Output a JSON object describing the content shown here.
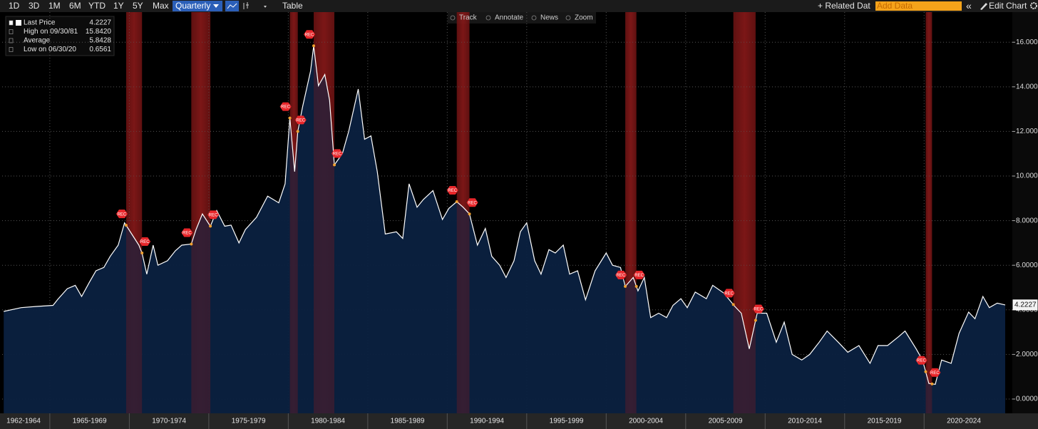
{
  "toolbar": {
    "periods": [
      "1D",
      "3D",
      "1M",
      "6M",
      "YTD",
      "1Y",
      "5Y",
      "Max"
    ],
    "frequency": "Quarterly",
    "table": "Table",
    "related": "+ Related Dat",
    "add_data": "Add Data",
    "collapse": "«",
    "edit": "Edit Chart"
  },
  "chart_tools": [
    "Track",
    "Annotate",
    "News",
    "Zoom"
  ],
  "legend": [
    {
      "label": "Last Price",
      "value": "4.2227"
    },
    {
      "label": "High on 09/30/81",
      "value": "15.8420"
    },
    {
      "label": "Average",
      "value": "5.8428"
    },
    {
      "label": "Low on 06/30/20",
      "value": "0.6561"
    }
  ],
  "chart_data": {
    "type": "area",
    "x": [
      1962.1,
      1963.2,
      1964.1,
      1965.2,
      1965.5,
      1966.1,
      1966.6,
      1967.0,
      1967.5,
      1967.9,
      1968.4,
      1968.8,
      1969.3,
      1969.7,
      1970.2,
      1970.6,
      1970.8,
      1971.1,
      1971.5,
      1971.8,
      1972.4,
      1972.9,
      1973.3,
      1973.9,
      1974.2,
      1974.6,
      1975.1,
      1975.5,
      1976.0,
      1976.4,
      1976.9,
      1977.3,
      1978.0,
      1978.7,
      1979.4,
      1979.8,
      1980.1,
      1980.4,
      1980.6,
      1980.9,
      1981.4,
      1981.6,
      1981.9,
      1982.3,
      1982.6,
      1982.9,
      1983.4,
      1983.8,
      1984.4,
      1984.8,
      1985.2,
      1985.6,
      1986.1,
      1986.8,
      1987.2,
      1987.6,
      1988.1,
      1988.5,
      1989.1,
      1989.7,
      1990.1,
      1990.6,
      1991.0,
      1991.4,
      1991.9,
      1992.4,
      1992.8,
      1993.3,
      1993.7,
      1994.2,
      1994.6,
      1995.0,
      1995.5,
      1995.9,
      1996.4,
      1996.8,
      1997.3,
      1997.7,
      1998.2,
      1998.7,
      1999.3,
      2000.0,
      2000.4,
      2000.9,
      2001.2,
      2001.7,
      2002.0,
      2002.4,
      2002.8,
      2003.3,
      2003.8,
      2004.2,
      2004.7,
      2005.1,
      2005.6,
      2006.3,
      2006.7,
      2007.4,
      2008.1,
      2008.5,
      2009.0,
      2009.5,
      2010.1,
      2010.7,
      2011.2,
      2011.7,
      2012.3,
      2012.8,
      2013.4,
      2013.9,
      2014.6,
      2015.2,
      2015.9,
      2016.6,
      2017.1,
      2017.7,
      2018.4,
      2018.8,
      2019.5,
      2019.9,
      2020.3,
      2020.7,
      2021.1,
      2021.7,
      2022.2,
      2022.8,
      2023.2,
      2023.7,
      2024.1,
      2024.6,
      2025.1
    ],
    "series": [
      {
        "color": "#ffffff",
        "fill": "#0b2140",
        "values": [
          3.93,
          4.1,
          4.15,
          4.2,
          4.47,
          4.95,
          5.1,
          4.6,
          5.25,
          5.75,
          5.9,
          6.4,
          6.9,
          7.9,
          7.35,
          6.9,
          6.55,
          5.6,
          6.9,
          6.0,
          6.2,
          6.65,
          6.9,
          6.95,
          7.6,
          8.3,
          7.75,
          8.45,
          7.75,
          7.8,
          7.0,
          7.6,
          8.15,
          9.1,
          8.8,
          9.65,
          12.6,
          10.2,
          12.0,
          13.1,
          14.7,
          15.84,
          14.05,
          14.55,
          13.4,
          10.5,
          11.0,
          12.0,
          13.9,
          11.65,
          11.8,
          10.2,
          7.4,
          7.5,
          7.2,
          9.65,
          8.6,
          8.95,
          9.35,
          8.05,
          8.55,
          8.85,
          8.6,
          8.3,
          6.9,
          7.65,
          6.4,
          6.0,
          5.45,
          6.2,
          7.5,
          7.9,
          6.2,
          5.6,
          6.7,
          6.55,
          6.9,
          5.6,
          5.75,
          4.45,
          5.75,
          6.55,
          6.0,
          5.9,
          5.05,
          5.45,
          4.85,
          5.45,
          3.65,
          3.85,
          3.65,
          4.2,
          4.5,
          4.1,
          4.8,
          4.5,
          5.1,
          4.75,
          4.15,
          3.85,
          2.25,
          3.85,
          3.85,
          2.55,
          3.45,
          2.0,
          1.75,
          2.0,
          2.55,
          3.05,
          2.55,
          2.1,
          2.4,
          1.6,
          2.4,
          2.4,
          2.8,
          3.05,
          2.25,
          1.75,
          0.7,
          0.66,
          1.75,
          1.6,
          2.95,
          3.9,
          3.6,
          4.6,
          4.1,
          4.3,
          4.22
        ]
      }
    ],
    "recessions": [
      [
        1969.8,
        1970.8
      ],
      [
        1973.9,
        1975.1
      ],
      [
        1980.1,
        1980.6
      ],
      [
        1981.6,
        1982.9
      ],
      [
        1990.6,
        1991.4
      ],
      [
        2001.2,
        2001.9
      ],
      [
        2008.0,
        2009.4
      ],
      [
        2020.1,
        2020.5
      ]
    ],
    "recession_label": "REC",
    "xlim": [
      1962,
      2025.55
    ],
    "xticks": [
      {
        "value": 1963.35,
        "label": "1962-1964"
      },
      {
        "value": 1967.5,
        "label": "1965-1969"
      },
      {
        "value": 1972.5,
        "label": "1970-1974"
      },
      {
        "value": 1977.5,
        "label": "1975-1979"
      },
      {
        "value": 1982.5,
        "label": "1980-1984"
      },
      {
        "value": 1987.5,
        "label": "1985-1989"
      },
      {
        "value": 1992.5,
        "label": "1990-1994"
      },
      {
        "value": 1997.5,
        "label": "1995-1999"
      },
      {
        "value": 2002.5,
        "label": "2000-2004"
      },
      {
        "value": 2007.5,
        "label": "2005-2009"
      },
      {
        "value": 2012.5,
        "label": "2010-2014"
      },
      {
        "value": 2017.5,
        "label": "2015-2019"
      },
      {
        "value": 2022.5,
        "label": "2020-2024"
      }
    ],
    "ylim": [
      -0.64,
      17.35
    ],
    "yticks": [
      {
        "value": 0,
        "label": "0.0000"
      },
      {
        "value": 2,
        "label": "2.0000"
      },
      {
        "value": 4,
        "label": "4.0000"
      },
      {
        "value": 6,
        "label": "6.0000"
      },
      {
        "value": 8,
        "label": "8.0000"
      },
      {
        "value": 10,
        "label": "10.0000"
      },
      {
        "value": 12,
        "label": "12.0000"
      },
      {
        "value": 14,
        "label": "14.0000"
      },
      {
        "value": 16,
        "label": "16.0000"
      }
    ],
    "grid": true
  }
}
